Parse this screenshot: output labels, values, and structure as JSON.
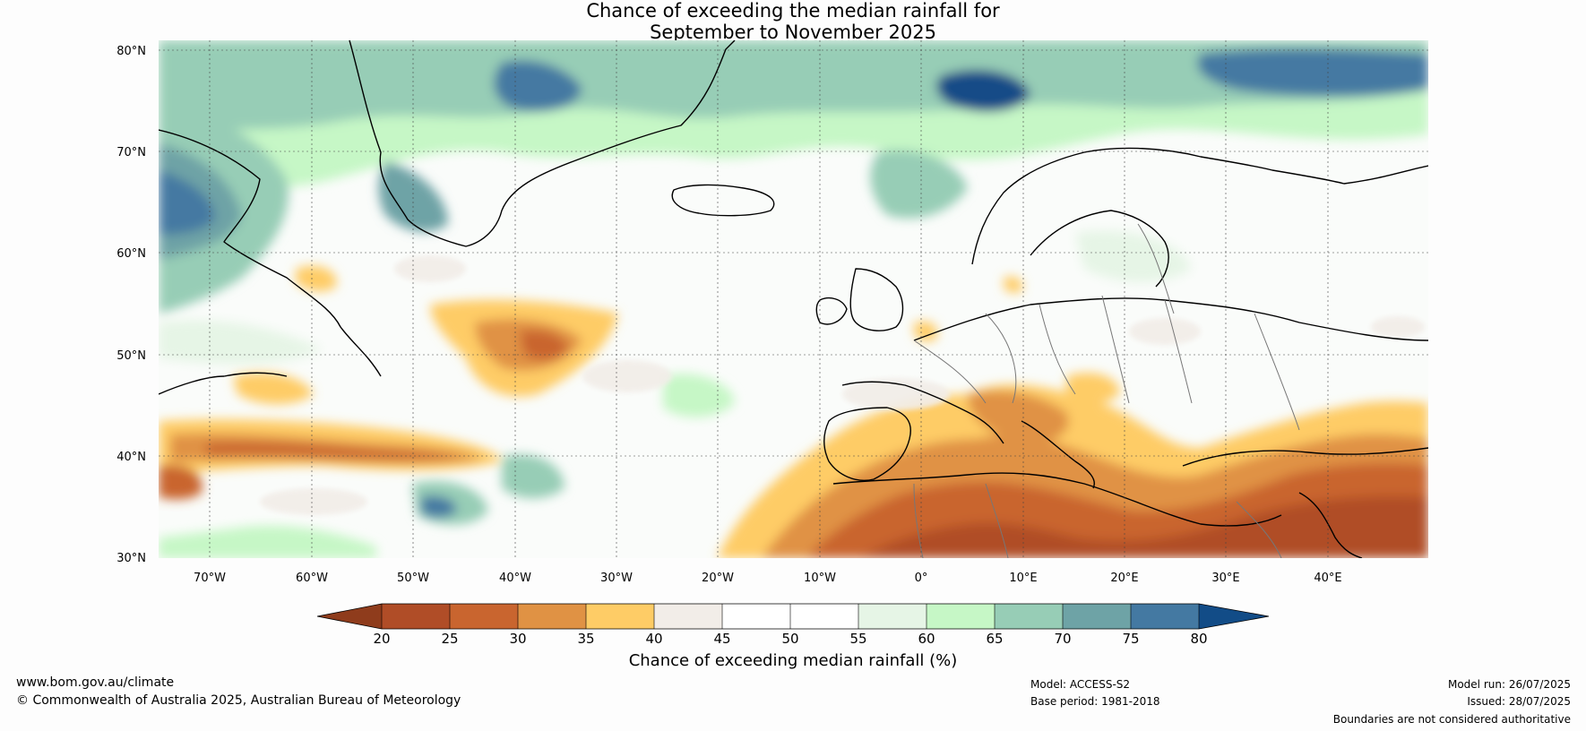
{
  "title_line1": "Chance of exceeding the median rainfall for",
  "title_line2": "September to November 2025",
  "lat_labels": [
    "80°N",
    "70°N",
    "60°N",
    "50°N",
    "40°N",
    "30°N"
  ],
  "lon_labels": [
    "70°W",
    "60°W",
    "50°W",
    "40°W",
    "30°W",
    "20°W",
    "10°W",
    "0°",
    "10°E",
    "20°E",
    "30°E",
    "40°E"
  ],
  "colorbar": {
    "title": "Chance of exceeding median rainfall (%)",
    "ticks": [
      "20",
      "25",
      "30",
      "35",
      "40",
      "45",
      "50",
      "55",
      "60",
      "65",
      "70",
      "75",
      "80"
    ],
    "colors": {
      "below_20": "#8f3c1c",
      "20-25": "#b04d27",
      "25-30": "#c9652f",
      "30-35": "#e09244",
      "35-40": "#fecc66",
      "40-45": "#f2ede8",
      "45-50": "#ffffff",
      "50-55": "#ffffff",
      "55-60": "#e6f5e6",
      "60-65": "#c6f7c6",
      "65-70": "#97cdb6",
      "70-75": "#6ea3a6",
      "75-80": "#4479a2",
      "above_80": "#124c87"
    }
  },
  "footer": {
    "website": "www.bom.gov.au/climate",
    "copyright": "© Commonwealth of Australia 2025, Australian Bureau of Meteorology",
    "model": "Model: ACCESS-S2",
    "base_period": "Base period: 1981-2018",
    "model_run": "Model run: 26/07/2025",
    "issued": "Issued: 28/07/2025",
    "disclaimer": "Boundaries are not considered authoritative"
  }
}
